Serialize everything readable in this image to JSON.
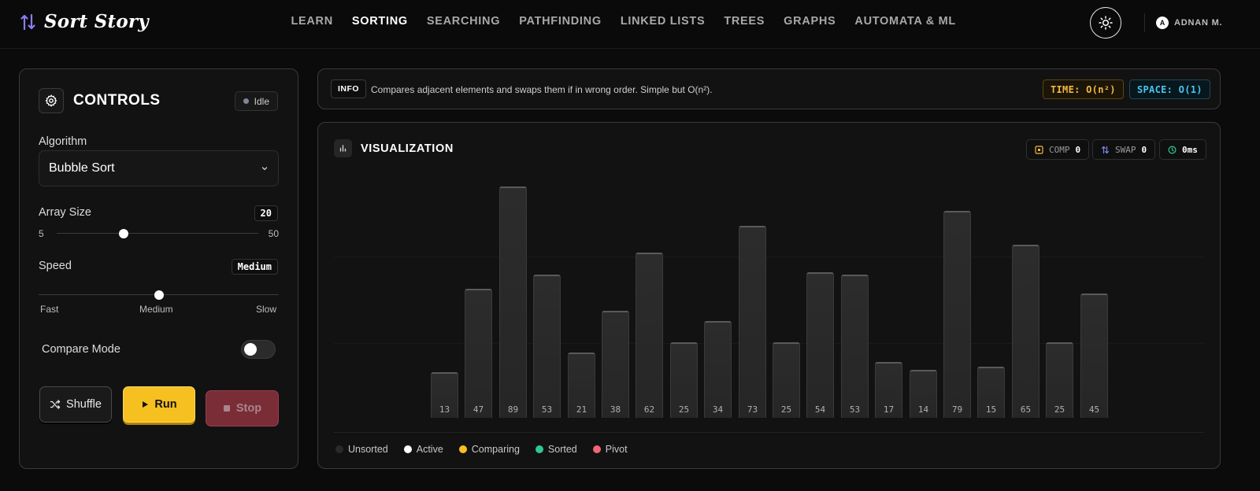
{
  "app": {
    "title": "Sort Story"
  },
  "nav": {
    "items": [
      {
        "label": "LEARN",
        "active": false
      },
      {
        "label": "SORTING",
        "active": true
      },
      {
        "label": "SEARCHING",
        "active": false
      },
      {
        "label": "PATHFINDING",
        "active": false
      },
      {
        "label": "LINKED LISTS",
        "active": false
      },
      {
        "label": "TREES",
        "active": false
      },
      {
        "label": "GRAPHS",
        "active": false
      },
      {
        "label": "AUTOMATA & ML",
        "active": false
      }
    ]
  },
  "user": {
    "initial": "A",
    "name": "ADNAN M."
  },
  "controls": {
    "title": "CONTROLS",
    "status": "Idle",
    "algorithm_label": "Algorithm",
    "algorithm_value": "Bubble Sort",
    "array_size_label": "Array Size",
    "array_size_value": "20",
    "array_size_min": "5",
    "array_size_max": "50",
    "array_size_fraction": 0.3333,
    "speed_label": "Speed",
    "speed_value": "Medium",
    "speed_fast": "Fast",
    "speed_medium": "Medium",
    "speed_slow": "Slow",
    "speed_fraction": 0.5,
    "compare_mode_label": "Compare Mode",
    "compare_mode_on": false,
    "shuffle_label": "Shuffle",
    "run_label": "Run",
    "stop_label": "Stop"
  },
  "info": {
    "tag": "INFO",
    "text": "Compares adjacent elements and swaps them if in wrong order. Simple but O(n²).",
    "time": "TIME: O(n²)",
    "space": "SPACE: O(1)"
  },
  "viz": {
    "title": "VISUALIZATION",
    "comp_label": "COMP",
    "comp_value": "0",
    "swap_label": "SWAP",
    "swap_value": "0",
    "time_value": "0ms"
  },
  "chart_data": {
    "type": "bar",
    "values": [
      13,
      47,
      89,
      53,
      21,
      38,
      62,
      25,
      34,
      73,
      25,
      54,
      53,
      17,
      14,
      79,
      15,
      65,
      25,
      45
    ],
    "ylim": [
      0,
      100
    ]
  },
  "legend": [
    {
      "label": "Unsorted",
      "color": "#2a2a2a"
    },
    {
      "label": "Active",
      "color": "#ffffff"
    },
    {
      "label": "Comparing",
      "color": "#f6c021"
    },
    {
      "label": "Sorted",
      "color": "#2fc794"
    },
    {
      "label": "Pivot",
      "color": "#ef6576"
    }
  ],
  "colors": {
    "accent": "#f6c021",
    "time": "#f5b841",
    "space": "#48c6f0",
    "logo": "#8b7cf6"
  }
}
